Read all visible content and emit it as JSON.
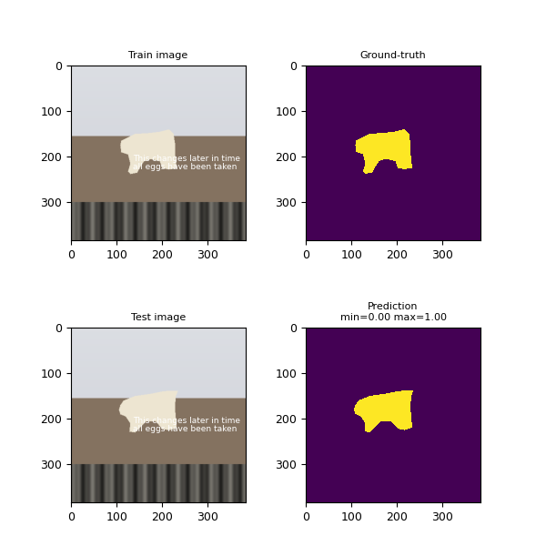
{
  "chart_data": [
    {
      "type": "photo",
      "title": "Train image",
      "xlim": [
        -0.5,
        383.5
      ],
      "ylim": [
        383.5,
        -0.5
      ],
      "xticks": [
        0,
        100,
        200,
        300
      ],
      "yticks": [
        0,
        100,
        200,
        300
      ],
      "caption": [
        "This changes later in time",
        "all eggs have been taken"
      ],
      "object_polygon": [
        [
          110,
          165
        ],
        [
          120,
          160
        ],
        [
          140,
          150
        ],
        [
          170,
          148
        ],
        [
          195,
          145
        ],
        [
          215,
          140
        ],
        [
          225,
          150
        ],
        [
          228,
          170
        ],
        [
          228,
          190
        ],
        [
          232,
          225
        ],
        [
          215,
          228
        ],
        [
          200,
          225
        ],
        [
          195,
          210
        ],
        [
          175,
          205
        ],
        [
          160,
          210
        ],
        [
          150,
          225
        ],
        [
          145,
          235
        ],
        [
          130,
          238
        ],
        [
          125,
          232
        ],
        [
          130,
          215
        ],
        [
          125,
          195
        ],
        [
          110,
          190
        ],
        [
          108,
          175
        ]
      ]
    },
    {
      "type": "mask",
      "title": "Ground-truth",
      "xlim": [
        -0.5,
        383.5
      ],
      "ylim": [
        383.5,
        -0.5
      ],
      "xticks": [
        0,
        100,
        200,
        300
      ],
      "yticks": [
        0,
        100,
        200,
        300
      ],
      "value_range": [
        0,
        1
      ],
      "object_polygon": [
        [
          110,
          165
        ],
        [
          120,
          160
        ],
        [
          140,
          150
        ],
        [
          170,
          148
        ],
        [
          195,
          145
        ],
        [
          215,
          140
        ],
        [
          225,
          150
        ],
        [
          228,
          170
        ],
        [
          228,
          190
        ],
        [
          232,
          225
        ],
        [
          215,
          228
        ],
        [
          200,
          225
        ],
        [
          195,
          210
        ],
        [
          175,
          205
        ],
        [
          160,
          210
        ],
        [
          150,
          225
        ],
        [
          145,
          235
        ],
        [
          130,
          238
        ],
        [
          125,
          232
        ],
        [
          130,
          215
        ],
        [
          125,
          195
        ],
        [
          110,
          190
        ],
        [
          108,
          175
        ]
      ]
    },
    {
      "type": "photo",
      "title": "Test image",
      "xlim": [
        -0.5,
        383.5
      ],
      "ylim": [
        383.5,
        -0.5
      ],
      "xticks": [
        0,
        100,
        200,
        300
      ],
      "yticks": [
        0,
        100,
        200,
        300
      ],
      "caption": [
        "This changes later in time",
        "all eggs have been taken"
      ],
      "object_polygon": [
        [
          108,
          170
        ],
        [
          115,
          160
        ],
        [
          140,
          150
        ],
        [
          175,
          145
        ],
        [
          200,
          140
        ],
        [
          218,
          138
        ],
        [
          235,
          138
        ],
        [
          230,
          150
        ],
        [
          228,
          175
        ],
        [
          232,
          220
        ],
        [
          215,
          225
        ],
        [
          200,
          222
        ],
        [
          185,
          205
        ],
        [
          165,
          205
        ],
        [
          150,
          220
        ],
        [
          140,
          230
        ],
        [
          128,
          228
        ],
        [
          130,
          210
        ],
        [
          120,
          195
        ],
        [
          108,
          190
        ],
        [
          105,
          180
        ]
      ]
    },
    {
      "type": "mask",
      "title": "Prediction\nmin=0.00 max=1.00",
      "xlim": [
        -0.5,
        383.5
      ],
      "ylim": [
        383.5,
        -0.5
      ],
      "xticks": [
        0,
        100,
        200,
        300
      ],
      "yticks": [
        0,
        100,
        200,
        300
      ],
      "value_range": [
        0,
        1
      ],
      "object_polygon": [
        [
          108,
          170
        ],
        [
          115,
          160
        ],
        [
          140,
          150
        ],
        [
          175,
          145
        ],
        [
          200,
          140
        ],
        [
          218,
          138
        ],
        [
          235,
          138
        ],
        [
          230,
          150
        ],
        [
          228,
          175
        ],
        [
          232,
          220
        ],
        [
          215,
          225
        ],
        [
          200,
          222
        ],
        [
          185,
          205
        ],
        [
          165,
          205
        ],
        [
          150,
          220
        ],
        [
          140,
          230
        ],
        [
          128,
          228
        ],
        [
          130,
          210
        ],
        [
          120,
          195
        ],
        [
          108,
          190
        ],
        [
          105,
          180
        ]
      ]
    }
  ]
}
